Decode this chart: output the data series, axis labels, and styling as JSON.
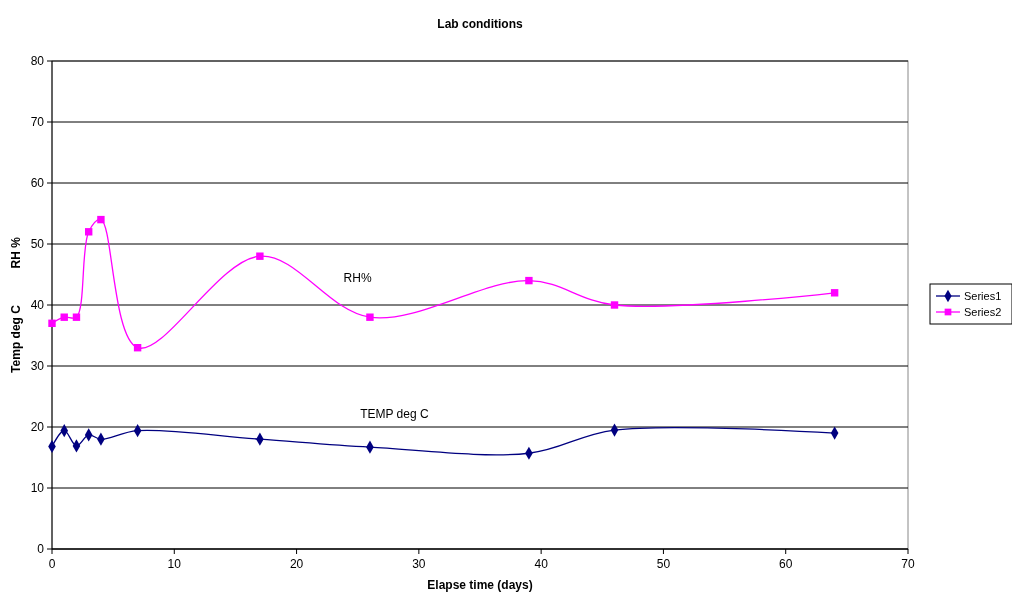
{
  "chart_data": {
    "type": "line",
    "title": "Lab conditions",
    "xlabel": "Elapse time (days)",
    "ylabel": "Temp deg C           RH %",
    "xlim": [
      0,
      70
    ],
    "xticks": [
      0,
      10,
      20,
      30,
      40,
      50,
      60,
      70
    ],
    "ylim": [
      0,
      80
    ],
    "yticks": [
      0,
      10,
      20,
      30,
      40,
      50,
      60,
      70,
      80
    ],
    "grid": "y",
    "legend": "right",
    "series": [
      {
        "name": "Series1",
        "color": "#000080",
        "marker": "diamond",
        "x": [
          0,
          1,
          2,
          3,
          4,
          7,
          17,
          26,
          39,
          46,
          64
        ],
        "values": [
          16.8,
          19.4,
          16.9,
          18.7,
          18,
          19.4,
          18,
          16.7,
          15.7,
          19.5,
          19
        ]
      },
      {
        "name": "Series2",
        "color": "#ff00ff",
        "marker": "square",
        "x": [
          0,
          1,
          2,
          3,
          4,
          7,
          17,
          26,
          39,
          46,
          64
        ],
        "values": [
          37,
          38,
          38,
          52,
          54,
          33,
          48,
          38,
          44,
          40,
          42
        ]
      }
    ],
    "annotations": [
      "RH%",
      "TEMP deg C"
    ]
  }
}
